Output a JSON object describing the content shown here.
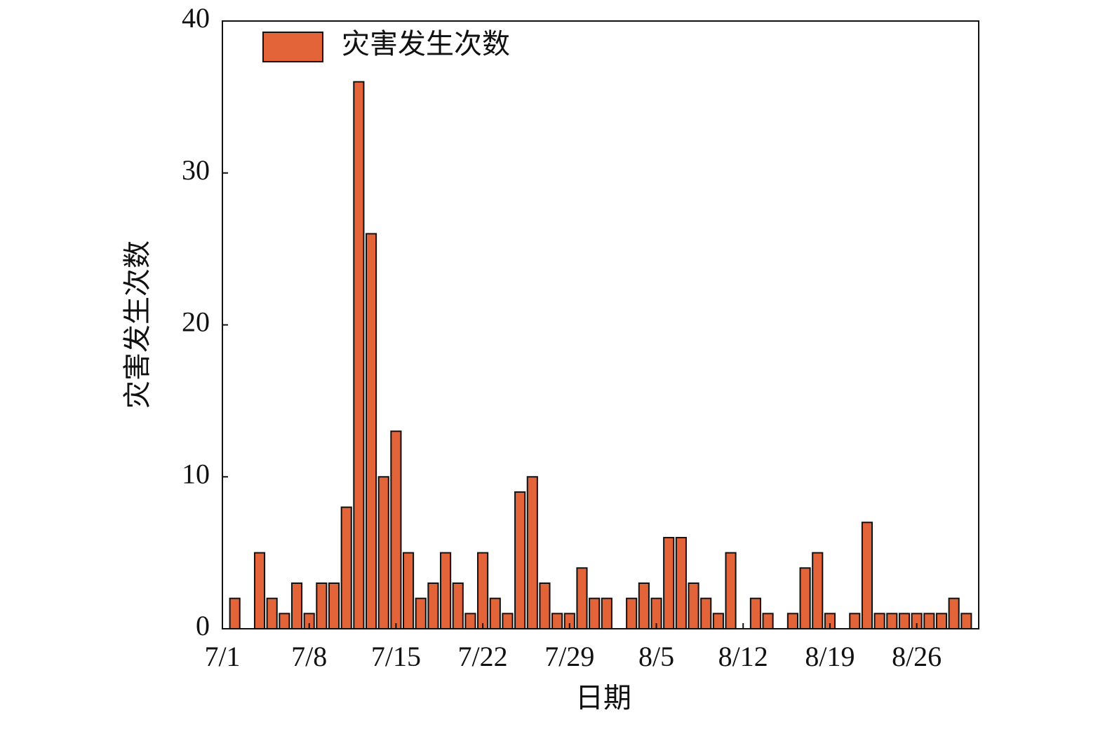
{
  "chart_data": {
    "type": "bar",
    "xlabel": "日期",
    "ylabel": "灾害发生次数",
    "x": [
      1,
      2,
      3,
      4,
      5,
      6,
      7,
      8,
      9,
      10,
      11,
      12,
      13,
      14,
      15,
      16,
      17,
      18,
      19,
      20,
      21,
      22,
      23,
      24,
      25,
      26,
      27,
      28,
      29,
      30,
      31,
      32,
      33,
      34,
      35,
      36,
      37,
      38,
      39,
      40,
      41,
      42,
      43,
      44,
      45,
      46,
      47,
      48,
      49,
      50,
      51,
      52,
      53,
      54,
      55,
      56,
      57,
      58,
      59,
      60
    ],
    "series": [
      {
        "name": "灾害发生次数",
        "color": "#e4643a",
        "values": [
          2,
          0,
          5,
          2,
          1,
          3,
          1,
          3,
          3,
          8,
          36,
          26,
          10,
          13,
          5,
          2,
          3,
          5,
          3,
          1,
          5,
          2,
          1,
          9,
          10,
          3,
          1,
          1,
          4,
          2,
          2,
          0,
          2,
          3,
          2,
          6,
          6,
          3,
          2,
          1,
          5,
          0,
          2,
          1,
          0,
          1,
          4,
          5,
          1,
          0,
          1,
          7,
          1,
          1,
          1,
          1,
          1,
          1,
          2,
          1
        ]
      }
    ],
    "xlim": [
      0,
      61
    ],
    "xticks": [
      {
        "value": 0,
        "label": "7/1"
      },
      {
        "value": 7,
        "label": "7/8"
      },
      {
        "value": 14,
        "label": "7/15"
      },
      {
        "value": 21,
        "label": "7/22"
      },
      {
        "value": 28,
        "label": "7/29"
      },
      {
        "value": 35,
        "label": "8/5"
      },
      {
        "value": 42,
        "label": "8/12"
      },
      {
        "value": 49,
        "label": "8/19"
      },
      {
        "value": 56,
        "label": "8/26"
      }
    ],
    "ylim": [
      0,
      40
    ],
    "yticks": [
      0,
      10,
      20,
      30,
      40
    ],
    "legend": "upper left"
  }
}
